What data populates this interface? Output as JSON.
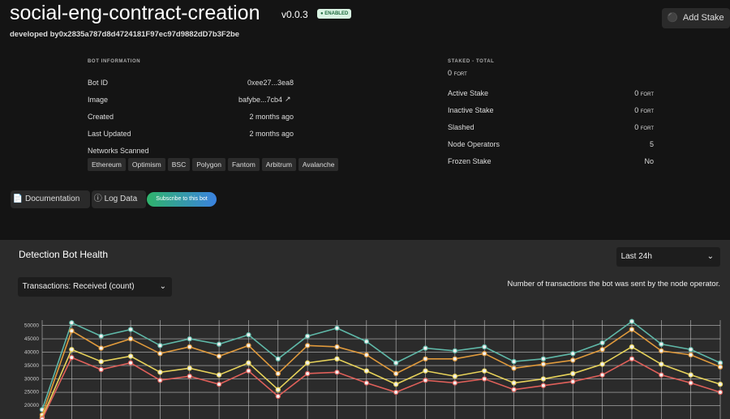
{
  "header": {
    "title": "social-eng-contract-creation",
    "version": "v0.0.3",
    "status": "ENABLED",
    "developed_label": "developed by",
    "developer": "0x2835a787d8d4724181F97ec97d9882dD7b3F2be",
    "add_stake": "Add Stake"
  },
  "bot_information": {
    "heading": "BOT INFORMATION",
    "rows": [
      [
        "Bot ID",
        "0xee27...3ea8"
      ],
      [
        "Image",
        "bafybe...7cb4"
      ],
      [
        "Created",
        "2 months ago"
      ],
      [
        "Last Updated",
        "2 months ago"
      ]
    ],
    "networks_label": "Networks Scanned",
    "networks": [
      "Ethereum",
      "Optimism",
      "BSC",
      "Polygon",
      "Fantom",
      "Arbitrum",
      "Avalanche"
    ]
  },
  "staking": {
    "heading": "STAKED - TOTAL",
    "total": "0",
    "total_unit": "FORT",
    "rows": [
      [
        "Active Stake",
        "0",
        "FORT"
      ],
      [
        "Inactive Stake",
        "0",
        "FORT"
      ],
      [
        "Slashed",
        "0",
        "FORT"
      ],
      [
        "Node Operators",
        "5"
      ],
      [
        "Frozen Stake",
        "No"
      ]
    ]
  },
  "actions": {
    "documentation": "Documentation",
    "log_data": "Log Data",
    "subscribe": "Subscribe to this bot"
  },
  "health": {
    "title": "Detection Bot Health",
    "range": "Last 24h",
    "metric": "Transactions: Received (count)",
    "description": "Number of transactions the bot was sent by the node operator."
  },
  "chart_data": {
    "type": "line",
    "categories": [
      null,
      null,
      null,
      null,
      null,
      null,
      null,
      null,
      null,
      null,
      null,
      null,
      null,
      null,
      null,
      null,
      null,
      null,
      null,
      null,
      null,
      null,
      null,
      null
    ],
    "series": [
      {
        "color": "#5fb8a8",
        "values": [
          18500,
          51000,
          46000,
          48500,
          42500,
          45000,
          43000,
          46500,
          37500,
          46000,
          49000,
          44000,
          36000,
          41500,
          40500,
          42000,
          36500,
          37500,
          39500,
          43500,
          51500,
          43000,
          41000,
          36000
        ]
      },
      {
        "color": "#e09a3c",
        "values": [
          16500,
          48000,
          41500,
          45000,
          39500,
          42000,
          38500,
          42500,
          32000,
          42500,
          42000,
          39000,
          32000,
          37500,
          37500,
          39500,
          34000,
          35500,
          37000,
          41000,
          48500,
          40500,
          39000,
          34500
        ]
      },
      {
        "color": "#e8d35a",
        "values": [
          15500,
          41000,
          36500,
          38500,
          32500,
          34000,
          31500,
          36000,
          26000,
          36000,
          37500,
          33000,
          28000,
          33000,
          31000,
          33000,
          28500,
          30000,
          32000,
          35500,
          42000,
          35500,
          31500,
          28000
        ]
      },
      {
        "color": "#e0605a",
        "values": [
          15000,
          38000,
          33500,
          36000,
          29500,
          31000,
          28000,
          33000,
          23500,
          32000,
          32500,
          28500,
          25000,
          29500,
          28500,
          30000,
          26000,
          27500,
          29000,
          31500,
          37500,
          31500,
          28500,
          25000
        ]
      }
    ],
    "ylim": [
      15000,
      52000
    ],
    "yticks": [
      20000,
      25000,
      30000,
      35000,
      40000,
      45000,
      50000
    ],
    "grid": true
  }
}
